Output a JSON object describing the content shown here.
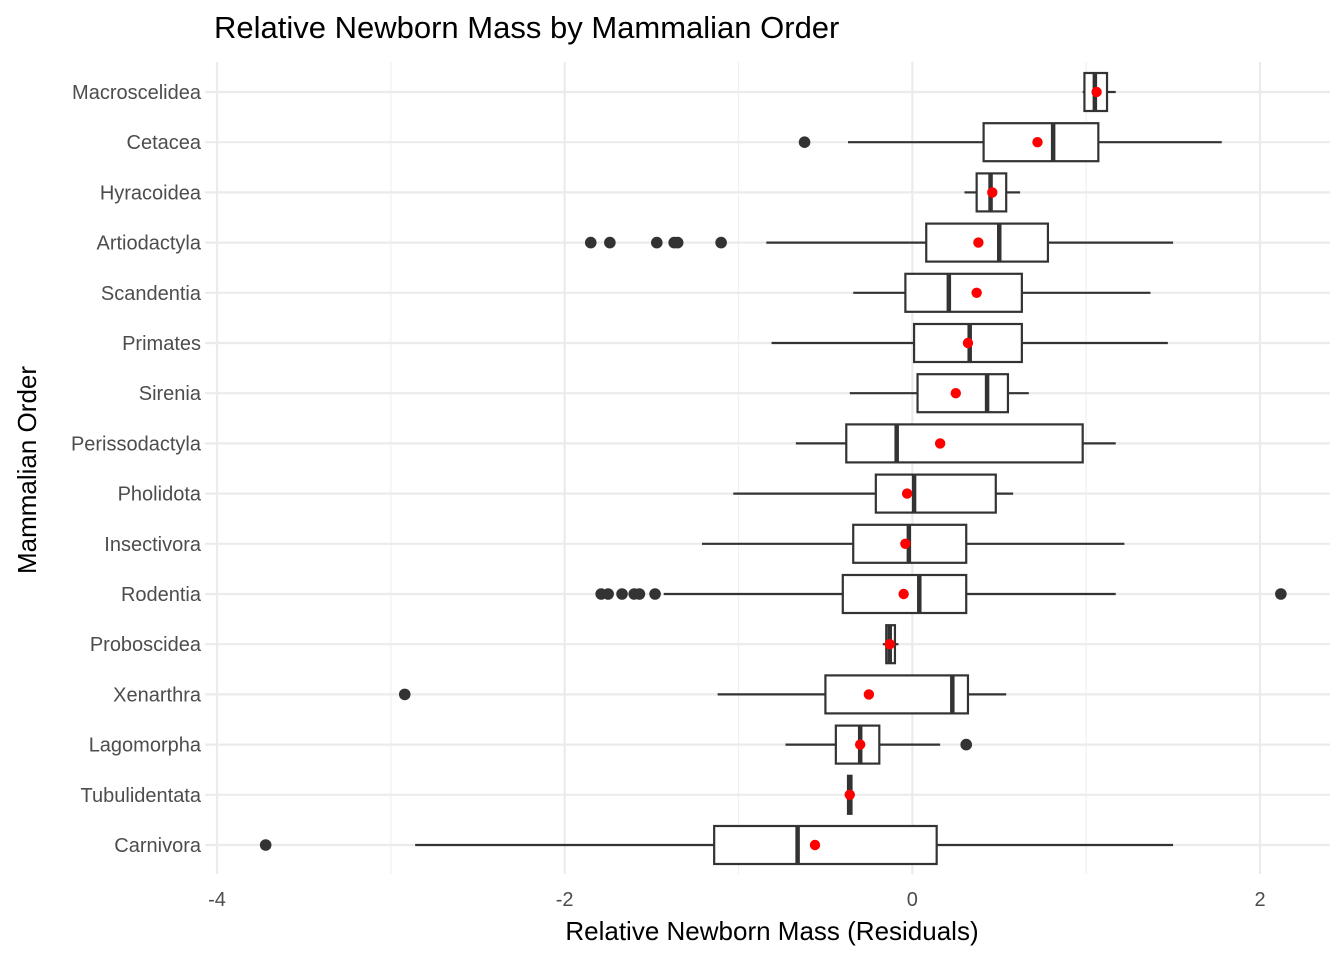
{
  "chart_data": {
    "type": "boxplot",
    "orientation": "horizontal",
    "title": "Relative Newborn Mass by Mammalian Order",
    "xlabel": "Relative Newborn Mass (Residuals)",
    "ylabel": "Mammalian Order",
    "xlim": [
      -4.0,
      2.4
    ],
    "x_ticks": [
      -4,
      -2,
      0,
      2
    ],
    "x_tick_labels": [
      "-4",
      "-2",
      "0",
      "2"
    ],
    "grid": "on",
    "legend": "none",
    "mean_marker_color": "#ff0000",
    "box_color": "#333333",
    "outlier_color": "#333333",
    "categories": [
      "Macroscelidea",
      "Cetacea",
      "Hyracoidea",
      "Artiodactyla",
      "Scandentia",
      "Primates",
      "Sirenia",
      "Perissodactyla",
      "Pholidota",
      "Insectivora",
      "Rodentia",
      "Proboscidea",
      "Xenarthra",
      "Lagomorpha",
      "Tubulidentata",
      "Carnivora"
    ],
    "boxes": [
      {
        "category": "Macroscelidea",
        "whisker_low": 0.98,
        "q1": 0.99,
        "median": 1.05,
        "q3": 1.12,
        "whisker_high": 1.17,
        "mean": 1.06,
        "outliers": []
      },
      {
        "category": "Cetacea",
        "whisker_low": -0.37,
        "q1": 0.41,
        "median": 0.81,
        "q3": 1.07,
        "whisker_high": 1.78,
        "mean": 0.72,
        "outliers": [
          -0.62
        ]
      },
      {
        "category": "Hyracoidea",
        "whisker_low": 0.3,
        "q1": 0.37,
        "median": 0.45,
        "q3": 0.54,
        "whisker_high": 0.62,
        "mean": 0.46,
        "outliers": []
      },
      {
        "category": "Artiodactyla",
        "whisker_low": -0.84,
        "q1": 0.08,
        "median": 0.5,
        "q3": 0.78,
        "whisker_high": 1.5,
        "mean": 0.38,
        "outliers": [
          -1.85,
          -1.74,
          -1.47,
          -1.37,
          -1.35,
          -1.1
        ]
      },
      {
        "category": "Scandentia",
        "whisker_low": -0.34,
        "q1": -0.04,
        "median": 0.21,
        "q3": 0.63,
        "whisker_high": 1.37,
        "mean": 0.37,
        "outliers": []
      },
      {
        "category": "Primates",
        "whisker_low": -0.81,
        "q1": 0.01,
        "median": 0.33,
        "q3": 0.63,
        "whisker_high": 1.47,
        "mean": 0.32,
        "outliers": []
      },
      {
        "category": "Sirenia",
        "whisker_low": -0.36,
        "q1": 0.03,
        "median": 0.43,
        "q3": 0.55,
        "whisker_high": 0.67,
        "mean": 0.25,
        "outliers": []
      },
      {
        "category": "Perissodactyla",
        "whisker_low": -0.67,
        "q1": -0.38,
        "median": -0.09,
        "q3": 0.98,
        "whisker_high": 1.17,
        "mean": 0.16,
        "outliers": []
      },
      {
        "category": "Pholidota",
        "whisker_low": -1.03,
        "q1": -0.21,
        "median": 0.01,
        "q3": 0.48,
        "whisker_high": 0.58,
        "mean": -0.03,
        "outliers": []
      },
      {
        "category": "Insectivora",
        "whisker_low": -1.21,
        "q1": -0.34,
        "median": -0.02,
        "q3": 0.31,
        "whisker_high": 1.22,
        "mean": -0.04,
        "outliers": []
      },
      {
        "category": "Rodentia",
        "whisker_low": -1.43,
        "q1": -0.4,
        "median": 0.04,
        "q3": 0.31,
        "whisker_high": 1.17,
        "mean": -0.05,
        "outliers": [
          -1.79,
          -1.75,
          -1.67,
          -1.6,
          -1.57,
          -1.48,
          2.12
        ]
      },
      {
        "category": "Proboscidea",
        "whisker_low": -0.17,
        "q1": -0.15,
        "median": -0.13,
        "q3": -0.1,
        "whisker_high": -0.08,
        "mean": -0.13,
        "outliers": []
      },
      {
        "category": "Xenarthra",
        "whisker_low": -1.12,
        "q1": -0.5,
        "median": 0.23,
        "q3": 0.32,
        "whisker_high": 0.54,
        "mean": -0.25,
        "outliers": [
          -2.92
        ]
      },
      {
        "category": "Lagomorpha",
        "whisker_low": -0.73,
        "q1": -0.44,
        "median": -0.3,
        "q3": -0.19,
        "whisker_high": 0.16,
        "mean": -0.3,
        "outliers": [
          0.31
        ]
      },
      {
        "category": "Tubulidentata",
        "whisker_low": -0.37,
        "q1": -0.37,
        "median": -0.36,
        "q3": -0.35,
        "whisker_high": -0.35,
        "mean": -0.36,
        "outliers": []
      },
      {
        "category": "Carnivora",
        "whisker_low": -2.86,
        "q1": -1.14,
        "median": -0.66,
        "q3": 0.14,
        "whisker_high": 1.5,
        "mean": -0.56,
        "outliers": [
          -3.72
        ]
      }
    ]
  }
}
